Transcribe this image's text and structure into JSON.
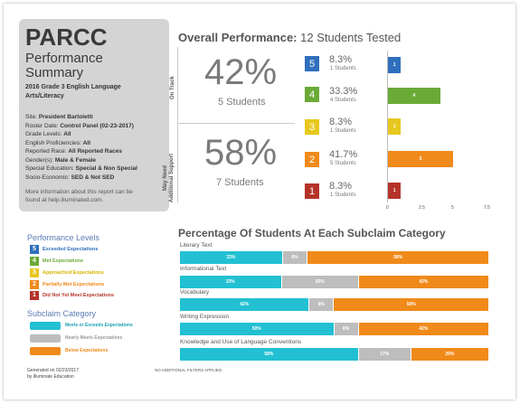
{
  "colors": {
    "exceeded": "#2f6fbd",
    "met": "#6aab38",
    "approached": "#e7c81f",
    "partially": "#f08a1a",
    "did_not_meet": "#b5342a",
    "meets_or_exceeds": "#22c0d2",
    "nearly_meets": "#bdbdbd",
    "below": "#f08a1a"
  },
  "card": {
    "brand": "PARCC",
    "subtitle_1": "Performance",
    "subtitle_2": "Summary",
    "grade_1": "2016 Grade 3 English Language",
    "grade_2": "Arts/Literacy",
    "meta": [
      {
        "label": "Site:",
        "value": "President Bartoletti"
      },
      {
        "label": "Roster Date:",
        "value": "Control Panel (02-23-2017)"
      },
      {
        "label": "Grade Levels:",
        "value": "All"
      },
      {
        "label": "English Proficiencies:",
        "value": "All"
      },
      {
        "label": "Reported Race:",
        "value": "All Reported Races"
      },
      {
        "label": "Gender(s):",
        "value": "Male & Female"
      },
      {
        "label": "Special Education:",
        "value": "Special & Non Special"
      },
      {
        "label": "Socio-Economic:",
        "value": "SED & Not SED"
      }
    ],
    "more_1": "More information about this report can be",
    "more_2": "found at help.illuminated.com."
  },
  "performance_legend": {
    "title": "Performance Levels",
    "items": [
      {
        "num": "5",
        "label": "Exceeded Expectations"
      },
      {
        "num": "4",
        "label": "Met Expectations"
      },
      {
        "num": "3",
        "label": "Approached Expectations"
      },
      {
        "num": "2",
        "label": "Partially Met Expectations"
      },
      {
        "num": "1",
        "label": "Did Not Yet Meet Expectations"
      }
    ]
  },
  "subclaim_legend": {
    "title": "Subclaim Category",
    "items": [
      {
        "label": "Meets or Exceeds Expectations"
      },
      {
        "label": "Nearly Meets Expectations"
      },
      {
        "label": "Below Expectations"
      }
    ]
  },
  "footer": {
    "generated_1": "Generated on 02/23/2017",
    "generated_2": "by Illuminate Education",
    "filters": "NO ADDITIONAL FILTERS APPLIED."
  },
  "overall": {
    "title_bold": "Overall Performance:",
    "title_rest": " 12 Students Tested",
    "on_track_label": "On Track",
    "support_label_1": "May Need",
    "support_label_2": "Additional Support",
    "on_track_pct": "42%",
    "on_track_students": "5 Students",
    "support_pct": "58%",
    "support_students": "7 Students",
    "levels": [
      {
        "num": "5",
        "pct": "8.3%",
        "count": "1 Students"
      },
      {
        "num": "4",
        "pct": "33.3%",
        "count": "4 Students"
      },
      {
        "num": "3",
        "pct": "8.3%",
        "count": "1 Students"
      },
      {
        "num": "2",
        "pct": "41.7%",
        "count": "5 Students"
      },
      {
        "num": "1",
        "pct": "8.3%",
        "count": "1 Students"
      }
    ],
    "axis_ticks": [
      "0",
      "2.5",
      "5",
      "7.5"
    ]
  },
  "chart_data": [
    {
      "type": "bar",
      "categories": [
        "5",
        "4",
        "3",
        "2",
        "1"
      ],
      "values": [
        1,
        4,
        1,
        5,
        1
      ],
      "xlim": [
        0,
        7.5
      ],
      "tick_labels": [
        "0",
        "2.5",
        "5",
        "7.5"
      ]
    },
    {
      "type": "bar",
      "title": "Percentage Of Students At Each Subclaim Category",
      "categories": [
        "Literary Text",
        "Informational Text",
        "Vocabulary",
        "Writing Expression",
        "Knowledge and Use of Language Conventions"
      ],
      "series": [
        {
          "name": "Meets or Exceeds Expectations",
          "values": [
            33,
            33,
            42,
            50,
            58
          ]
        },
        {
          "name": "Nearly Meets Expectations",
          "values": [
            8,
            25,
            8,
            8,
            17
          ]
        },
        {
          "name": "Below Expectations",
          "values": [
            58,
            42,
            50,
            42,
            25
          ]
        }
      ]
    }
  ]
}
